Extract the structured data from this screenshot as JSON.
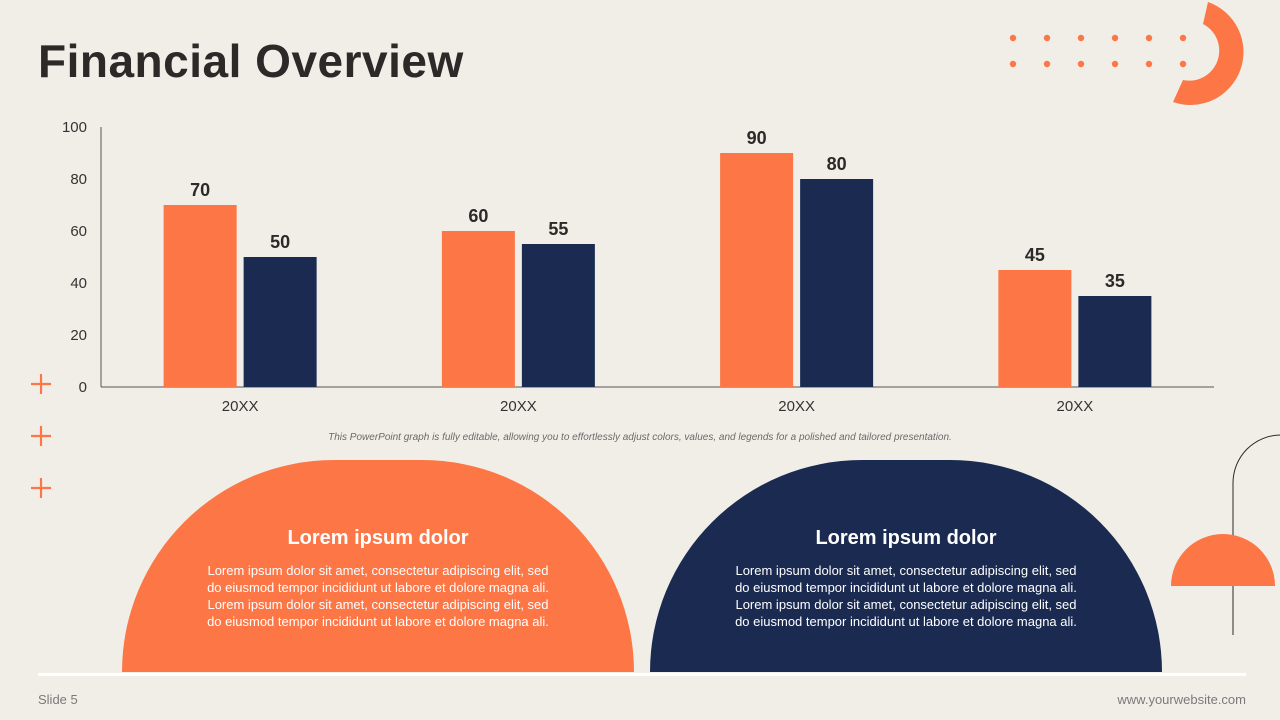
{
  "slide": {
    "title": "Financial Overview",
    "note": "This PowerPoint graph is fully editable, allowing you to effortlessly adjust colors, values, and legends for a polished and tailored presentation.",
    "footer_left": "Slide 5",
    "footer_right": "www.yourwebsite.com"
  },
  "cards": [
    {
      "heading": "Lorem ipsum dolor",
      "body": "Lorem ipsum dolor sit amet, consectetur adipiscing elit, sed do eiusmod tempor incididunt ut labore et dolore magna ali. Lorem ipsum dolor sit amet, consectetur adipiscing elit, sed do eiusmod tempor incididunt ut labore et dolore magna ali."
    },
    {
      "heading": "Lorem ipsum dolor",
      "body": "Lorem ipsum dolor sit amet, consectetur adipiscing elit, sed do eiusmod tempor incididunt ut labore et dolore magna ali. Lorem ipsum dolor sit amet, consectetur adipiscing elit, sed do eiusmod tempor incididunt ut labore et dolore magna ali."
    }
  ],
  "colors": {
    "accent": "#FC7646",
    "navy": "#1A2A50",
    "background": "#F1EEE8",
    "text": "#2B2A29"
  },
  "icons": [
    "plus-icon",
    "half-ring-icon",
    "dot-grid-icon",
    "half-circle-icon"
  ],
  "chart_data": {
    "type": "bar",
    "categories": [
      "20XX",
      "20XX",
      "20XX",
      "20XX"
    ],
    "series": [
      {
        "values": [
          70,
          60,
          90,
          45
        ],
        "color": "#FC7646"
      },
      {
        "values": [
          50,
          55,
          80,
          35
        ],
        "color": "#1A2A50"
      }
    ],
    "ylim": [
      0,
      100
    ],
    "yticks": [
      0,
      20,
      40,
      60,
      80,
      100
    ],
    "data_labels": true,
    "grid": false,
    "legend": "none"
  }
}
